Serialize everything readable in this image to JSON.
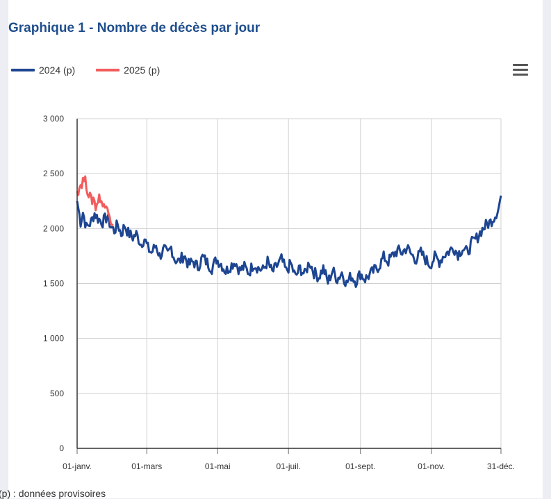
{
  "chart_data": {
    "type": "line",
    "title": "Graphique 1 - Nombre de décès par jour",
    "xlabel": "",
    "ylabel": "",
    "ylim": [
      0,
      3000
    ],
    "y_ticks": [
      "0",
      "500",
      "1 000",
      "1 500",
      "2 000",
      "2 500",
      "3 000"
    ],
    "y_tick_values": [
      0,
      500,
      1000,
      1500,
      2000,
      2500,
      3000
    ],
    "x_ticks": [
      "01-janv.",
      "01-mars",
      "01-mai",
      "01-juil.",
      "01-sept.",
      "01-nov.",
      "31-déc."
    ],
    "x_tick_days": [
      0,
      60,
      121,
      182,
      244,
      305,
      365
    ],
    "x_range_days": [
      0,
      365
    ],
    "grid": true,
    "legend_position": "top-left",
    "series": [
      {
        "name": "2024 (p)",
        "color": "#1d4591",
        "points": [
          [
            0,
            2250
          ],
          [
            3,
            2060
          ],
          [
            5,
            2150
          ],
          [
            8,
            2010
          ],
          [
            12,
            2060
          ],
          [
            15,
            2140
          ],
          [
            18,
            2090
          ],
          [
            22,
            2060
          ],
          [
            26,
            2110
          ],
          [
            29,
            2020
          ],
          [
            32,
            1980
          ],
          [
            35,
            2040
          ],
          [
            38,
            1950
          ],
          [
            41,
            2030
          ],
          [
            44,
            1960
          ],
          [
            48,
            1920
          ],
          [
            51,
            1950
          ],
          [
            55,
            1860
          ],
          [
            58,
            1910
          ],
          [
            61,
            1820
          ],
          [
            64,
            1780
          ],
          [
            68,
            1850
          ],
          [
            71,
            1750
          ],
          [
            75,
            1810
          ],
          [
            78,
            1760
          ],
          [
            81,
            1830
          ],
          [
            84,
            1720
          ],
          [
            88,
            1700
          ],
          [
            92,
            1760
          ],
          [
            96,
            1670
          ],
          [
            100,
            1700
          ],
          [
            104,
            1650
          ],
          [
            108,
            1740
          ],
          [
            112,
            1690
          ],
          [
            116,
            1640
          ],
          [
            120,
            1720
          ],
          [
            124,
            1680
          ],
          [
            128,
            1610
          ],
          [
            132,
            1660
          ],
          [
            136,
            1700
          ],
          [
            140,
            1620
          ],
          [
            144,
            1650
          ],
          [
            148,
            1600
          ],
          [
            152,
            1680
          ],
          [
            156,
            1640
          ],
          [
            160,
            1620
          ],
          [
            164,
            1700
          ],
          [
            168,
            1600
          ],
          [
            172,
            1660
          ],
          [
            176,
            1720
          ],
          [
            180,
            1610
          ],
          [
            184,
            1680
          ],
          [
            188,
            1560
          ],
          [
            192,
            1640
          ],
          [
            196,
            1580
          ],
          [
            200,
            1700
          ],
          [
            204,
            1600
          ],
          [
            208,
            1560
          ],
          [
            212,
            1640
          ],
          [
            216,
            1510
          ],
          [
            220,
            1620
          ],
          [
            224,
            1540
          ],
          [
            228,
            1600
          ],
          [
            232,
            1500
          ],
          [
            236,
            1570
          ],
          [
            240,
            1520
          ],
          [
            244,
            1590
          ],
          [
            248,
            1540
          ],
          [
            252,
            1580
          ],
          [
            256,
            1620
          ],
          [
            260,
            1660
          ],
          [
            264,
            1740
          ],
          [
            268,
            1700
          ],
          [
            272,
            1760
          ],
          [
            276,
            1800
          ],
          [
            280,
            1780
          ],
          [
            284,
            1830
          ],
          [
            288,
            1760
          ],
          [
            292,
            1720
          ],
          [
            296,
            1780
          ],
          [
            300,
            1720
          ],
          [
            304,
            1670
          ],
          [
            308,
            1740
          ],
          [
            312,
            1700
          ],
          [
            316,
            1760
          ],
          [
            320,
            1790
          ],
          [
            324,
            1830
          ],
          [
            328,
            1770
          ],
          [
            332,
            1820
          ],
          [
            336,
            1780
          ],
          [
            340,
            1870
          ],
          [
            344,
            1910
          ],
          [
            348,
            1980
          ],
          [
            352,
            2030
          ],
          [
            356,
            2060
          ],
          [
            360,
            2120
          ],
          [
            363,
            2190
          ],
          [
            365,
            2300
          ]
        ],
        "noise": 1
      },
      {
        "name": "2025 (p)",
        "color": "#f25c5c",
        "points": [
          [
            0,
            2340
          ],
          [
            2,
            2380
          ],
          [
            4,
            2420
          ],
          [
            6,
            2450
          ],
          [
            8,
            2400
          ],
          [
            10,
            2320
          ],
          [
            12,
            2250
          ],
          [
            14,
            2280
          ],
          [
            16,
            2200
          ],
          [
            18,
            2260
          ],
          [
            20,
            2290
          ],
          [
            22,
            2210
          ],
          [
            24,
            2180
          ],
          [
            26,
            2240
          ],
          [
            28,
            2140
          ],
          [
            29,
            2080
          ],
          [
            31,
            2040
          ]
        ],
        "noise": 1
      }
    ]
  },
  "footnote": "(p) : données provisoires"
}
